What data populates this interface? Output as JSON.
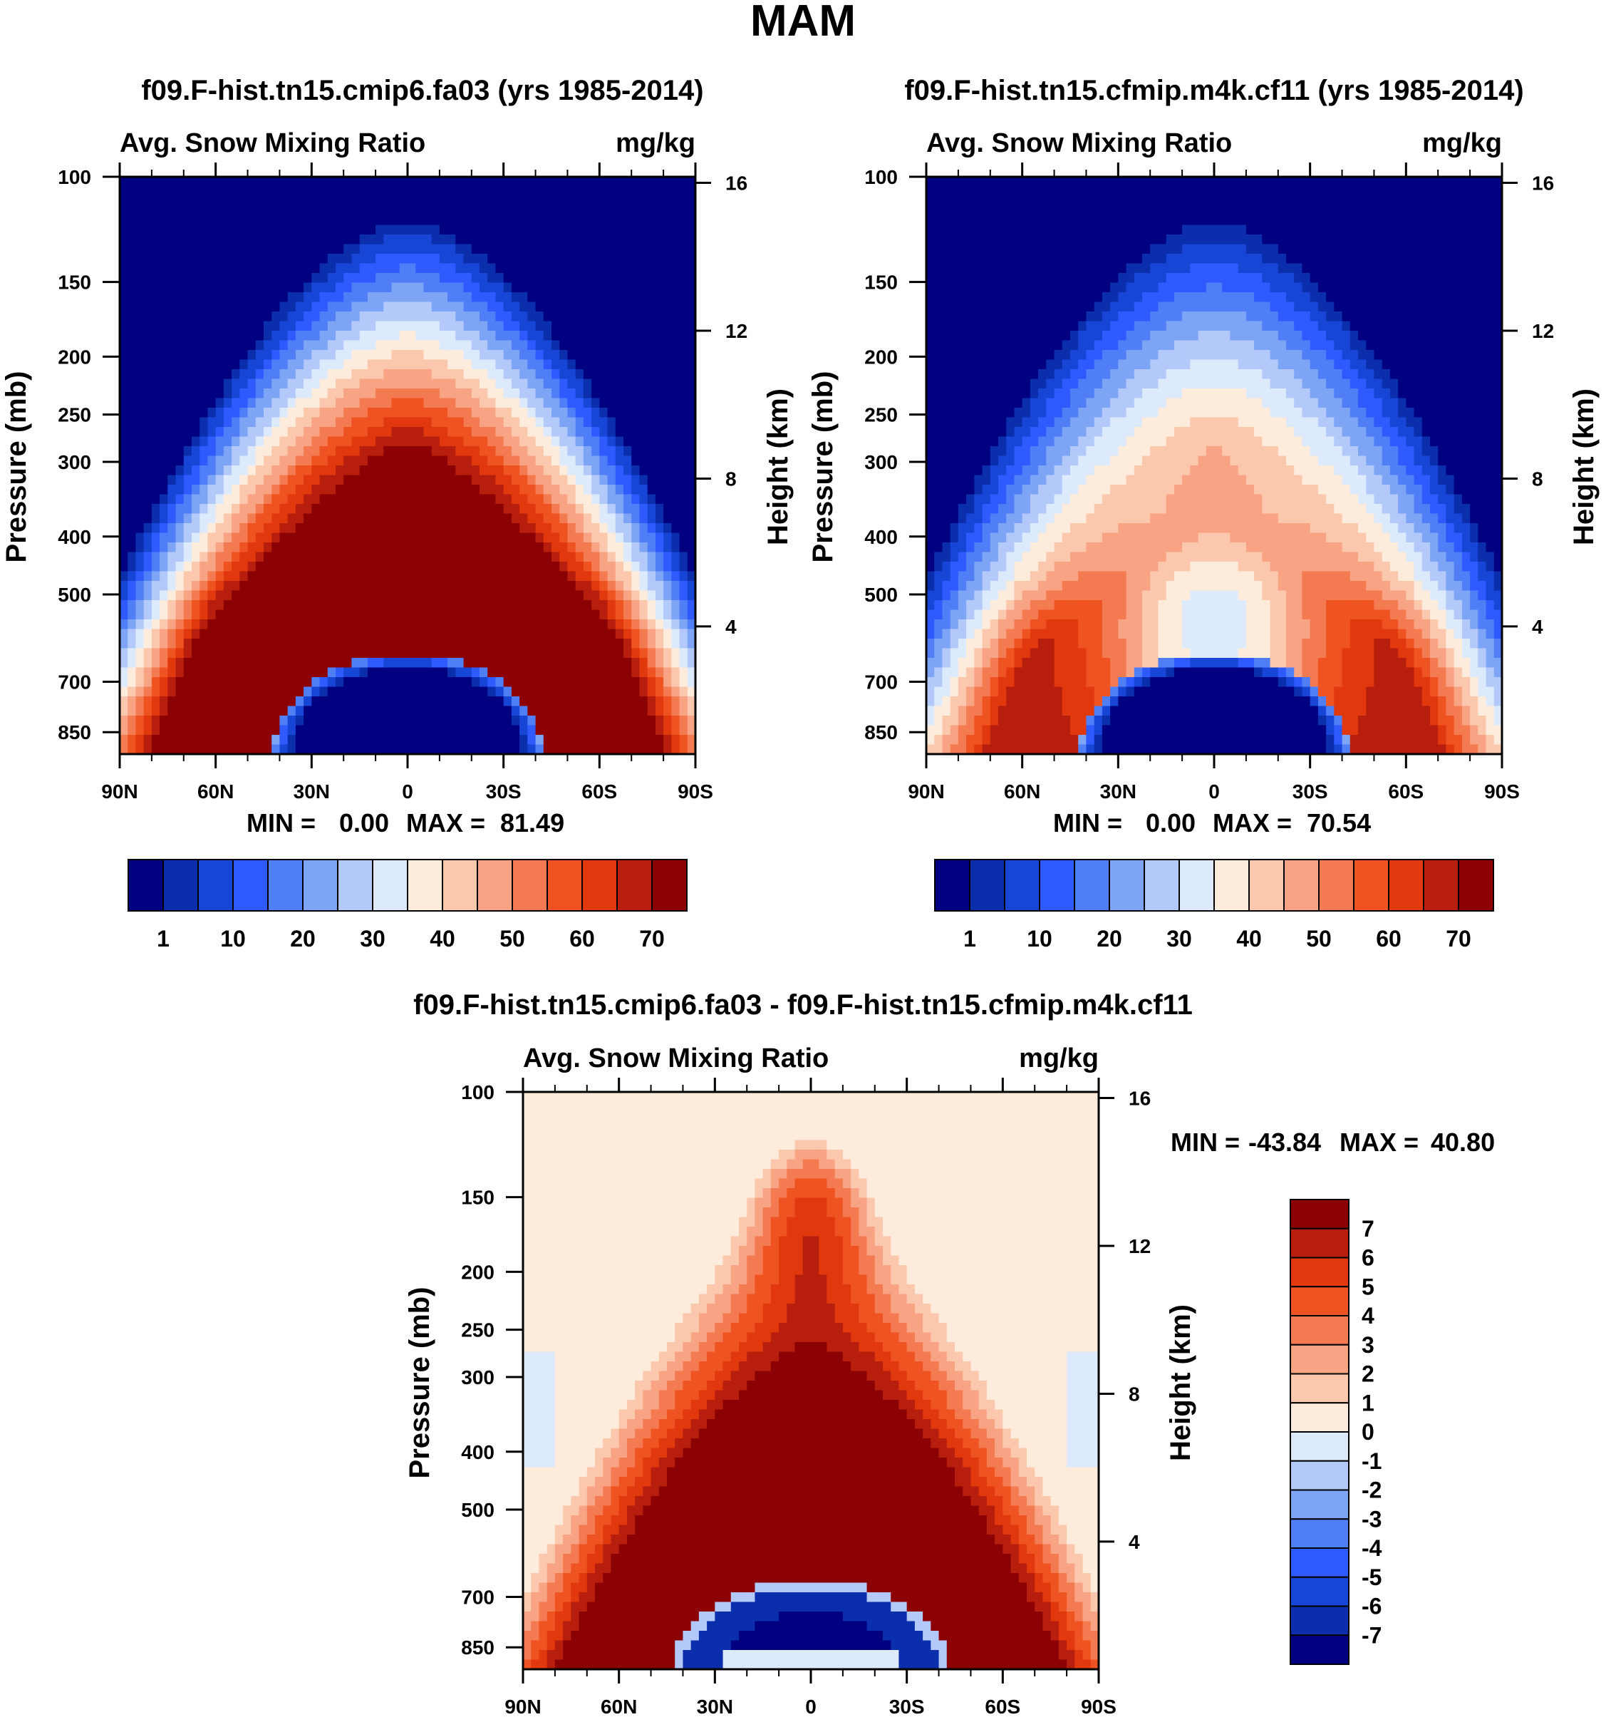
{
  "figure_title": "MAM",
  "colors": {
    "main_scale": [
      "#000080",
      "#0A2EAC",
      "#1745D6",
      "#2E5AFF",
      "#4F7EF6",
      "#7EA4F6",
      "#B2C9FA",
      "#DCEAFB",
      "#FDEBDB",
      "#FBC8AE",
      "#F8A383",
      "#F47A51",
      "#F05322",
      "#E2380E",
      "#B81E0D",
      "#8C0104"
    ],
    "diff_scale": [
      "#000080",
      "#0A2EAC",
      "#1745D6",
      "#2E5AFF",
      "#4F7EF6",
      "#7EA4F6",
      "#B2C9FA",
      "#DCEAFB",
      "#FDEBDB",
      "#FBC8AE",
      "#F8A383",
      "#F47A51",
      "#F05322",
      "#E2380E",
      "#B81E0D",
      "#8C0104"
    ]
  },
  "chart_data": [
    {
      "id": "panel1",
      "type": "heatmap",
      "title": "f09.F-hist.tn15.cmip6.fa03 (yrs 1985-2014)",
      "left_label": "Avg. Snow Mixing Ratio",
      "right_label": "mg/kg",
      "ylabel": "Pressure (mb)",
      "ylabel_right": "Height (km)",
      "x_ticks": [
        "90N",
        "60N",
        "30N",
        "0",
        "30S",
        "60S",
        "90S"
      ],
      "x_range": [
        -90,
        90
      ],
      "y_ticks": [
        100,
        150,
        200,
        250,
        300,
        400,
        500,
        700,
        850
      ],
      "y_range": [
        100,
        925
      ],
      "height_ticks": [
        16,
        12,
        8,
        4
      ],
      "min_label": "MIN =",
      "min_value": "0.00",
      "max_label": "MAX =",
      "max_value": "81.49",
      "colorbar_labels": [
        "1",
        "10",
        "20",
        "30",
        "40",
        "50",
        "60",
        "70"
      ],
      "features": {
        "outer_peak_pct": 100,
        "upper_peak_pct": 90,
        "core_low_pct": 0
      }
    },
    {
      "id": "panel2",
      "type": "heatmap",
      "title": "f09.F-hist.tn15.cfmip.m4k.cf11 (yrs 1985-2014)",
      "left_label": "Avg. Snow Mixing Ratio",
      "right_label": "mg/kg",
      "ylabel": "Pressure (mb)",
      "ylabel_right": "Height (km)",
      "x_ticks": [
        "90N",
        "60N",
        "30N",
        "0",
        "30S",
        "60S",
        "90S"
      ],
      "x_range": [
        -90,
        90
      ],
      "y_ticks": [
        100,
        150,
        200,
        250,
        300,
        400,
        500,
        700,
        850
      ],
      "y_range": [
        100,
        925
      ],
      "height_ticks": [
        16,
        12,
        8,
        4
      ],
      "min_label": "MIN =",
      "min_value": "0.00",
      "max_label": "MAX =",
      "max_value": "70.54",
      "colorbar_labels": [
        "1",
        "10",
        "20",
        "30",
        "40",
        "50",
        "60",
        "70"
      ],
      "features": {
        "outer_peak_pct": 86,
        "upper_peak_pct": 45,
        "core_low_pct": 0
      }
    },
    {
      "id": "diff",
      "type": "heatmap",
      "title": "f09.F-hist.tn15.cmip6.fa03 - f09.F-hist.tn15.cfmip.m4k.cf11",
      "left_label": "Avg. Snow Mixing Ratio",
      "right_label": "mg/kg",
      "ylabel": "Pressure (mb)",
      "ylabel_right": "Height (km)",
      "x_ticks": [
        "90N",
        "60N",
        "30N",
        "0",
        "30S",
        "60S",
        "90S"
      ],
      "x_range": [
        -90,
        90
      ],
      "y_ticks": [
        100,
        150,
        200,
        250,
        300,
        400,
        500,
        700,
        850
      ],
      "y_range": [
        100,
        925
      ],
      "height_ticks": [
        16,
        12,
        8,
        4
      ],
      "min_label": "MIN =",
      "min_value": "-43.84",
      "max_label": "MAX =",
      "max_value": "40.80",
      "colorbar_labels": [
        "7",
        "6",
        "5",
        "4",
        "3",
        "2",
        "1",
        "0",
        "-1",
        "-2",
        "-3",
        "-4",
        "-5",
        "-6",
        "-7"
      ]
    }
  ]
}
